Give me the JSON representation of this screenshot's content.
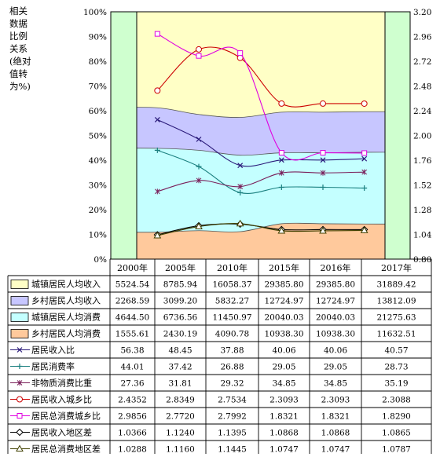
{
  "chart_data": {
    "type": "area",
    "title": "",
    "left_axis_label": "相关数据比例关系(绝对值转为%)",
    "left_ticks": [
      "0%",
      "10%",
      "20%",
      "30%",
      "40%",
      "50%",
      "60%",
      "70%",
      "80%",
      "90%",
      "100%"
    ],
    "right_ticks": [
      "0.80",
      "1.04",
      "1.28",
      "1.52",
      "1.76",
      "2.00",
      "2.24",
      "2.48",
      "2.72",
      "2.96",
      "3.20"
    ],
    "ylim_left": [
      0,
      100
    ],
    "ylim_right": [
      0.8,
      3.2
    ],
    "categories": [
      "2000年",
      "2005年",
      "2010年",
      "2015年",
      "2016年",
      "2017年"
    ],
    "colors": {
      "plot_bg": "#cfffcf",
      "urban_income": "#ffffc6",
      "rural_income": "#c7c6ff",
      "urban_consume": "#c4ffff",
      "rural_consume": "#ffc99c",
      "income_ratio": "#2a1a7a",
      "consume_rate": "#1a7f7f",
      "nonmaterial": "#7a1f5a",
      "income_urban_rural": "#cc0000",
      "consume_urban_rural": "#e000e0",
      "income_region": "#000000",
      "consume_region": "#404000"
    },
    "area_series": [
      {
        "name": "城镇居民人均收入",
        "values": [
          5524.54,
          8785.94,
          16058.37,
          29385.8,
          29385.8,
          31889.42
        ],
        "top_pct": [
          100,
          100,
          100,
          100,
          100,
          100
        ]
      },
      {
        "name": "乡村居民人均收入",
        "values": [
          2268.59,
          3099.2,
          5832.27,
          12724.97,
          12724.97,
          13812.09
        ],
        "top_pct": [
          61.2,
          58.5,
          57.3,
          59.4,
          59.4,
          59.6
        ]
      },
      {
        "name": "城镇居民人均消费",
        "values": [
          4644.5,
          6736.56,
          11450.97,
          20040.03,
          20040.03,
          21275.63
        ],
        "top_pct": [
          44.8,
          44.0,
          42.0,
          43.0,
          43.0,
          43.2
        ]
      },
      {
        "name": "乡村居民人均消费",
        "values": [
          1555.61,
          2430.19,
          4090.78,
          10938.3,
          10938.3,
          11632.51
        ],
        "top_pct": [
          10.9,
          11.5,
          11.1,
          14.3,
          14.3,
          14.2
        ]
      }
    ],
    "line_series": [
      {
        "name": "居民收入比",
        "values": [
          56.38,
          48.45,
          37.88,
          40.06,
          40.06,
          40.57
        ],
        "axis": "left",
        "marker": "x"
      },
      {
        "name": "居民消费率",
        "values": [
          44.01,
          37.42,
          26.88,
          29.05,
          29.05,
          28.73
        ],
        "axis": "left",
        "marker": "plus"
      },
      {
        "name": "非物质消费比重",
        "values": [
          27.36,
          31.81,
          29.32,
          34.85,
          34.85,
          35.19
        ],
        "axis": "left",
        "marker": "star"
      },
      {
        "name": "居民收入城乡比",
        "values": [
          2.4352,
          2.8349,
          2.7534,
          2.3093,
          2.3093,
          2.3088
        ],
        "axis": "right",
        "marker": "circle"
      },
      {
        "name": "居民总消费城乡比",
        "values": [
          2.9856,
          2.772,
          2.7992,
          1.8321,
          1.8321,
          1.829
        ],
        "axis": "right",
        "marker": "square"
      },
      {
        "name": "居民收入地区差",
        "values": [
          1.0366,
          1.124,
          1.1395,
          1.0868,
          1.0868,
          1.0865
        ],
        "axis": "right",
        "marker": "diamond"
      },
      {
        "name": "居民总消费地区差",
        "values": [
          1.0288,
          1.116,
          1.1445,
          1.0747,
          1.0747,
          1.0787
        ],
        "axis": "right",
        "marker": "triangle"
      }
    ],
    "table_rows": [
      {
        "label": "城镇居民人均收入",
        "swatch": "urban_income",
        "cells": [
          "5524.54",
          "8785.94",
          "16058.37",
          "29385.80",
          "29385.80",
          "31889.42"
        ]
      },
      {
        "label": "乡村居民人均收入",
        "swatch": "rural_income",
        "cells": [
          "2268.59",
          "3099.20",
          "5832.27",
          "12724.97",
          "12724.97",
          "13812.09"
        ]
      },
      {
        "label": "城镇居民人均消费",
        "swatch": "urban_consume",
        "cells": [
          "4644.50",
          "6736.56",
          "11450.97",
          "20040.03",
          "20040.03",
          "21275.63"
        ]
      },
      {
        "label": "乡村居民人均消费",
        "swatch": "rural_consume",
        "cells": [
          "1555.61",
          "2430.19",
          "4090.78",
          "10938.30",
          "10938.30",
          "11632.51"
        ]
      },
      {
        "label": "居民收入比",
        "marker": "x",
        "cells": [
          "56.38",
          "48.45",
          "37.88",
          "40.06",
          "40.06",
          "40.57"
        ]
      },
      {
        "label": "居民消费率",
        "marker": "plus",
        "cells": [
          "44.01",
          "37.42",
          "26.88",
          "29.05",
          "29.05",
          "28.73"
        ]
      },
      {
        "label": "非物质消费比重",
        "marker": "star",
        "cells": [
          "27.36",
          "31.81",
          "29.32",
          "34.85",
          "34.85",
          "35.19"
        ]
      },
      {
        "label": "居民收入城乡比",
        "marker": "circle",
        "cells": [
          "2.4352",
          "2.8349",
          "2.7534",
          "2.3093",
          "2.3093",
          "2.3088"
        ]
      },
      {
        "label": "居民总消费城乡比",
        "marker": "square",
        "cells": [
          "2.9856",
          "2.7720",
          "2.7992",
          "1.8321",
          "1.8321",
          "1.8290"
        ]
      },
      {
        "label": "居民收入地区差",
        "marker": "diamond",
        "cells": [
          "1.0366",
          "1.1240",
          "1.1395",
          "1.0868",
          "1.0868",
          "1.0865"
        ]
      },
      {
        "label": "居民总消费地区差",
        "marker": "triangle",
        "cells": [
          "1.0288",
          "1.1160",
          "1.1445",
          "1.0747",
          "1.0747",
          "1.0787"
        ]
      }
    ],
    "grid": true,
    "legend_placement": "table-below"
  }
}
